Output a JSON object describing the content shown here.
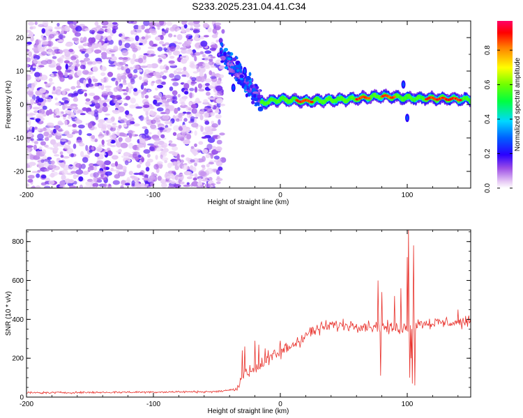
{
  "title": "S233.2025.231.04.41.C34",
  "chart_data": [
    {
      "type": "heatmap",
      "name": "spectrogram",
      "xlabel": "Height of straight line (km)",
      "ylabel": "Frequency (Hz)",
      "xlim": [
        -200,
        150
      ],
      "ylim": [
        -25,
        25
      ],
      "xticks": [
        -200,
        -100,
        0,
        100
      ],
      "xtick_labels": [
        "-200",
        "-100",
        "0",
        "100"
      ],
      "yticks": [
        -20,
        -10,
        0,
        10,
        20
      ],
      "ytick_labels": [
        "-20",
        "-10",
        "0",
        "10",
        "20"
      ],
      "colorbar": {
        "label": "Normalized spectral amplitude",
        "range": [
          0.0,
          0.97
        ],
        "ticks": [
          0.0,
          0.2,
          0.4,
          0.6,
          0.8
        ],
        "tick_labels": [
          "0.0",
          "0.2",
          "0.4",
          "0.6",
          "0.8"
        ]
      },
      "regions": {
        "noise": {
          "x": [
            -200,
            -45
          ],
          "freq": [
            -25,
            25
          ],
          "amplitude": [
            0.0,
            0.15
          ]
        },
        "transition": {
          "x": [
            -47,
            -15
          ],
          "freq_start": 16,
          "freq_end": 1,
          "amplitude": [
            0.1,
            0.35
          ]
        },
        "signal_band": {
          "x": [
            -15,
            150
          ],
          "center_freq": [
            [
              -15,
              0.5
            ],
            [
              0,
              1.5
            ],
            [
              20,
              1.0
            ],
            [
              50,
              1.5
            ],
            [
              80,
              2.5
            ],
            [
              100,
              2.0
            ],
            [
              150,
              1.5
            ]
          ],
          "peak_amplitude_segments": [
            [
              13,
              25
            ],
            [
              60,
              70
            ],
            [
              80,
              90
            ],
            [
              115,
              142
            ]
          ],
          "outliers": [
            [
              100,
              -4
            ],
            [
              97,
              6
            ],
            [
              -37,
              5
            ],
            [
              -28,
              10
            ]
          ]
        }
      }
    },
    {
      "type": "line",
      "name": "snr",
      "xlabel": "Height of straight line (km)",
      "ylabel": "SNR (10 * v/v)",
      "xlim": [
        -200,
        150
      ],
      "ylim": [
        0,
        860
      ],
      "xticks": [
        -200,
        -100,
        0,
        100
      ],
      "xtick_labels": [
        "-200",
        "-100",
        "0",
        "100"
      ],
      "yticks": [
        0,
        200,
        400,
        600,
        800
      ],
      "ytick_labels": [
        "0",
        "200",
        "400",
        "600",
        "800"
      ],
      "color": "#e8302a",
      "trend": [
        [
          -200,
          22
        ],
        [
          -50,
          28
        ],
        [
          -35,
          40
        ],
        [
          -30,
          110
        ],
        [
          -20,
          150
        ],
        [
          -10,
          190
        ],
        [
          0,
          230
        ],
        [
          10,
          270
        ],
        [
          20,
          320
        ],
        [
          30,
          350
        ],
        [
          40,
          370
        ],
        [
          60,
          370
        ],
        [
          80,
          360
        ],
        [
          95,
          350
        ],
        [
          110,
          380
        ],
        [
          150,
          385
        ]
      ],
      "spikes": [
        [
          -30,
          240
        ],
        [
          -28,
          260
        ],
        [
          -20,
          290
        ],
        [
          -17,
          270
        ],
        [
          -12,
          250
        ],
        [
          0,
          290
        ],
        [
          77,
          600
        ],
        [
          79,
          110
        ],
        [
          80,
          540
        ],
        [
          90,
          520
        ],
        [
          95,
          560
        ],
        [
          100,
          720
        ],
        [
          101,
          860
        ],
        [
          102,
          100
        ],
        [
          103,
          200
        ],
        [
          104,
          70
        ],
        [
          105,
          780
        ],
        [
          106,
          60
        ],
        [
          140,
          450
        ]
      ]
    }
  ]
}
